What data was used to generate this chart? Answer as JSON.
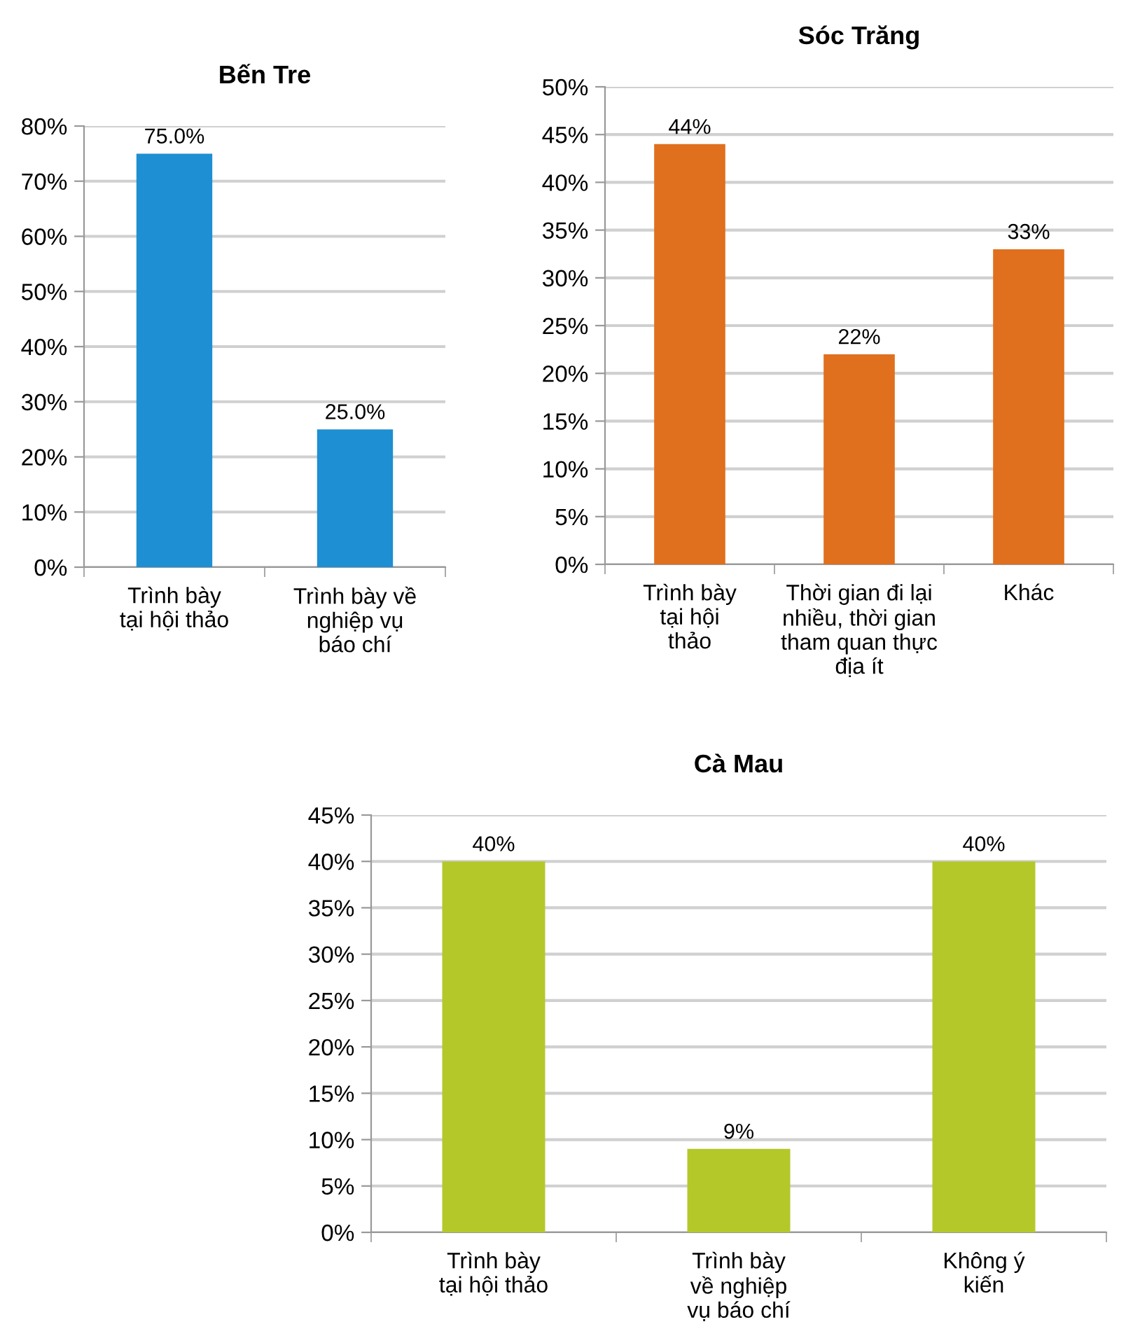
{
  "chart_data": [
    {
      "type": "bar",
      "title": "Bến Tre",
      "categories": [
        "Trình bày\ntại hội thảo",
        "Trình bày về\nnghiệp vụ\nbáo chí"
      ],
      "values": [
        75.0,
        25.0
      ],
      "value_labels": [
        "75.0%",
        "25.0%"
      ],
      "color": "#1e8fd2",
      "ylim": [
        0,
        80
      ],
      "yticks": [
        {
          "value": 0,
          "label": "0%"
        },
        {
          "value": 10,
          "label": "10%"
        },
        {
          "value": 20,
          "label": "20%"
        },
        {
          "value": 30,
          "label": "30%"
        },
        {
          "value": 40,
          "label": "40%"
        },
        {
          "value": 50,
          "label": "50%"
        },
        {
          "value": 60,
          "label": "60%"
        },
        {
          "value": 70,
          "label": "70%"
        },
        {
          "value": 80,
          "label": "80%"
        }
      ],
      "grid": "y"
    },
    {
      "type": "bar",
      "title": "Sóc Trăng",
      "categories": [
        "Trình bày\ntại hội\nthảo",
        "Thời gian đi lại\nnhiều, thời gian\ntham quan thực\nđịa ít",
        "Khác"
      ],
      "values": [
        44,
        22,
        33
      ],
      "value_labels": [
        "44%",
        "22%",
        "33%"
      ],
      "color": "#e0701e",
      "ylim": [
        0,
        50
      ],
      "yticks": [
        {
          "value": 0,
          "label": "0%"
        },
        {
          "value": 5,
          "label": "5%"
        },
        {
          "value": 10,
          "label": "10%"
        },
        {
          "value": 15,
          "label": "15%"
        },
        {
          "value": 20,
          "label": "20%"
        },
        {
          "value": 25,
          "label": "25%"
        },
        {
          "value": 30,
          "label": "30%"
        },
        {
          "value": 35,
          "label": "35%"
        },
        {
          "value": 40,
          "label": "40%"
        },
        {
          "value": 45,
          "label": "45%"
        },
        {
          "value": 50,
          "label": "50%"
        }
      ],
      "grid": "y"
    },
    {
      "type": "bar",
      "title": "Cà Mau",
      "categories": [
        "Trình bày\ntại hội thảo",
        "Trình bày\nvề nghiệp\nvụ báo chí",
        "Không ý\nkiến"
      ],
      "values": [
        40,
        9,
        40
      ],
      "value_labels": [
        "40%",
        "9%",
        "40%"
      ],
      "color": "#b4c82a",
      "ylim": [
        0,
        45
      ],
      "yticks": [
        {
          "value": 0,
          "label": "0%"
        },
        {
          "value": 5,
          "label": "5%"
        },
        {
          "value": 10,
          "label": "10%"
        },
        {
          "value": 15,
          "label": "15%"
        },
        {
          "value": 20,
          "label": "20%"
        },
        {
          "value": 25,
          "label": "25%"
        },
        {
          "value": 30,
          "label": "30%"
        },
        {
          "value": 35,
          "label": "35%"
        },
        {
          "value": 40,
          "label": "40%"
        },
        {
          "value": 45,
          "label": "45%"
        }
      ],
      "grid": "y"
    }
  ]
}
